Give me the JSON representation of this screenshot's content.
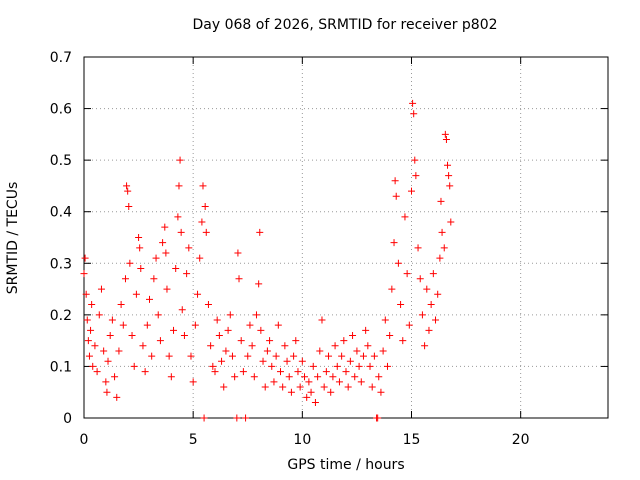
{
  "chart_data": {
    "type": "scatter",
    "title": "Day 068 of 2026, SRMTID for receiver p802",
    "xlabel": "GPS time / hours",
    "ylabel": "SRMTID / TECUs",
    "xlim": [
      0,
      24
    ],
    "ylim": [
      0,
      0.7
    ],
    "xticks": [
      0,
      5,
      10,
      15,
      20
    ],
    "yticks": [
      0,
      0.1,
      0.2,
      0.3,
      0.4,
      0.5,
      0.6,
      0.7
    ],
    "grid": true,
    "series": [
      {
        "name": "p802",
        "color": "#ff0000",
        "marker": "plus",
        "points": [
          [
            0.0,
            0.28
          ],
          [
            0.05,
            0.31
          ],
          [
            0.1,
            0.24
          ],
          [
            0.15,
            0.19
          ],
          [
            0.2,
            0.15
          ],
          [
            0.25,
            0.12
          ],
          [
            0.3,
            0.17
          ],
          [
            0.35,
            0.22
          ],
          [
            0.4,
            0.1
          ],
          [
            0.5,
            0.14
          ],
          [
            0.6,
            0.09
          ],
          [
            0.7,
            0.2
          ],
          [
            0.8,
            0.25
          ],
          [
            0.9,
            0.13
          ],
          [
            1.0,
            0.07
          ],
          [
            1.05,
            0.05
          ],
          [
            1.1,
            0.11
          ],
          [
            1.2,
            0.16
          ],
          [
            1.3,
            0.19
          ],
          [
            1.4,
            0.08
          ],
          [
            1.5,
            0.04
          ],
          [
            1.6,
            0.13
          ],
          [
            1.7,
            0.22
          ],
          [
            1.8,
            0.18
          ],
          [
            1.9,
            0.27
          ],
          [
            1.95,
            0.45
          ],
          [
            2.0,
            0.44
          ],
          [
            2.05,
            0.41
          ],
          [
            2.1,
            0.3
          ],
          [
            2.2,
            0.16
          ],
          [
            2.3,
            0.1
          ],
          [
            2.4,
            0.24
          ],
          [
            2.5,
            0.35
          ],
          [
            2.55,
            0.33
          ],
          [
            2.6,
            0.29
          ],
          [
            2.7,
            0.14
          ],
          [
            2.8,
            0.09
          ],
          [
            2.9,
            0.18
          ],
          [
            3.0,
            0.23
          ],
          [
            3.1,
            0.12
          ],
          [
            3.2,
            0.27
          ],
          [
            3.3,
            0.31
          ],
          [
            3.4,
            0.2
          ],
          [
            3.5,
            0.15
          ],
          [
            3.6,
            0.34
          ],
          [
            3.7,
            0.37
          ],
          [
            3.75,
            0.32
          ],
          [
            3.8,
            0.25
          ],
          [
            3.9,
            0.12
          ],
          [
            4.0,
            0.08
          ],
          [
            4.1,
            0.17
          ],
          [
            4.2,
            0.29
          ],
          [
            4.3,
            0.39
          ],
          [
            4.35,
            0.45
          ],
          [
            4.4,
            0.5
          ],
          [
            4.45,
            0.36
          ],
          [
            4.5,
            0.21
          ],
          [
            4.6,
            0.16
          ],
          [
            4.7,
            0.28
          ],
          [
            4.8,
            0.33
          ],
          [
            4.9,
            0.12
          ],
          [
            5.0,
            0.07
          ],
          [
            5.1,
            0.18
          ],
          [
            5.2,
            0.24
          ],
          [
            5.3,
            0.31
          ],
          [
            5.4,
            0.38
          ],
          [
            5.45,
            0.45
          ],
          [
            5.5,
            0.0
          ],
          [
            5.55,
            0.41
          ],
          [
            5.6,
            0.36
          ],
          [
            5.7,
            0.22
          ],
          [
            5.8,
            0.14
          ],
          [
            5.9,
            0.1
          ],
          [
            6.0,
            0.09
          ],
          [
            6.1,
            0.19
          ],
          [
            6.2,
            0.16
          ],
          [
            6.3,
            0.11
          ],
          [
            6.4,
            0.06
          ],
          [
            6.5,
            0.13
          ],
          [
            6.6,
            0.17
          ],
          [
            6.7,
            0.2
          ],
          [
            6.8,
            0.12
          ],
          [
            6.9,
            0.08
          ],
          [
            7.0,
            0.0
          ],
          [
            7.05,
            0.32
          ],
          [
            7.1,
            0.27
          ],
          [
            7.2,
            0.15
          ],
          [
            7.3,
            0.09
          ],
          [
            7.4,
            0.0
          ],
          [
            7.5,
            0.12
          ],
          [
            7.6,
            0.18
          ],
          [
            7.7,
            0.14
          ],
          [
            7.8,
            0.08
          ],
          [
            7.9,
            0.2
          ],
          [
            8.0,
            0.26
          ],
          [
            8.05,
            0.36
          ],
          [
            8.1,
            0.17
          ],
          [
            8.2,
            0.11
          ],
          [
            8.3,
            0.06
          ],
          [
            8.4,
            0.13
          ],
          [
            8.5,
            0.15
          ],
          [
            8.6,
            0.1
          ],
          [
            8.7,
            0.07
          ],
          [
            8.8,
            0.12
          ],
          [
            8.9,
            0.18
          ],
          [
            9.0,
            0.09
          ],
          [
            9.1,
            0.06
          ],
          [
            9.2,
            0.14
          ],
          [
            9.3,
            0.11
          ],
          [
            9.4,
            0.08
          ],
          [
            9.5,
            0.05
          ],
          [
            9.6,
            0.12
          ],
          [
            9.7,
            0.15
          ],
          [
            9.8,
            0.09
          ],
          [
            9.9,
            0.06
          ],
          [
            10.0,
            0.11
          ],
          [
            10.1,
            0.08
          ],
          [
            10.2,
            0.04
          ],
          [
            10.3,
            0.07
          ],
          [
            10.4,
            0.05
          ],
          [
            10.5,
            0.1
          ],
          [
            10.6,
            0.03
          ],
          [
            10.7,
            0.08
          ],
          [
            10.8,
            0.13
          ],
          [
            10.9,
            0.19
          ],
          [
            11.0,
            0.06
          ],
          [
            11.1,
            0.09
          ],
          [
            11.2,
            0.12
          ],
          [
            11.3,
            0.05
          ],
          [
            11.4,
            0.08
          ],
          [
            11.5,
            0.14
          ],
          [
            11.6,
            0.1
          ],
          [
            11.7,
            0.07
          ],
          [
            11.8,
            0.12
          ],
          [
            11.9,
            0.15
          ],
          [
            12.0,
            0.09
          ],
          [
            12.1,
            0.06
          ],
          [
            12.2,
            0.11
          ],
          [
            12.3,
            0.16
          ],
          [
            12.4,
            0.08
          ],
          [
            12.5,
            0.13
          ],
          [
            12.6,
            0.1
          ],
          [
            12.7,
            0.07
          ],
          [
            12.8,
            0.12
          ],
          [
            12.9,
            0.17
          ],
          [
            13.0,
            0.14
          ],
          [
            13.1,
            0.1
          ],
          [
            13.2,
            0.06
          ],
          [
            13.3,
            0.12
          ],
          [
            13.4,
            0.0
          ],
          [
            13.45,
            0.0
          ],
          [
            13.5,
            0.08
          ],
          [
            13.6,
            0.05
          ],
          [
            13.7,
            0.13
          ],
          [
            13.8,
            0.19
          ],
          [
            13.9,
            0.1
          ],
          [
            14.0,
            0.16
          ],
          [
            14.1,
            0.25
          ],
          [
            14.2,
            0.34
          ],
          [
            14.25,
            0.46
          ],
          [
            14.3,
            0.43
          ],
          [
            14.4,
            0.3
          ],
          [
            14.5,
            0.22
          ],
          [
            14.6,
            0.15
          ],
          [
            14.7,
            0.39
          ],
          [
            14.8,
            0.28
          ],
          [
            14.9,
            0.18
          ],
          [
            15.0,
            0.44
          ],
          [
            15.05,
            0.61
          ],
          [
            15.1,
            0.59
          ],
          [
            15.15,
            0.5
          ],
          [
            15.2,
            0.47
          ],
          [
            15.3,
            0.33
          ],
          [
            15.4,
            0.27
          ],
          [
            15.5,
            0.2
          ],
          [
            15.6,
            0.14
          ],
          [
            15.7,
            0.25
          ],
          [
            15.8,
            0.17
          ],
          [
            15.9,
            0.22
          ],
          [
            16.0,
            0.28
          ],
          [
            16.1,
            0.19
          ],
          [
            16.2,
            0.24
          ],
          [
            16.3,
            0.31
          ],
          [
            16.35,
            0.42
          ],
          [
            16.4,
            0.36
          ],
          [
            16.5,
            0.33
          ],
          [
            16.55,
            0.55
          ],
          [
            16.6,
            0.54
          ],
          [
            16.65,
            0.49
          ],
          [
            16.7,
            0.47
          ],
          [
            16.75,
            0.45
          ],
          [
            16.8,
            0.38
          ]
        ]
      }
    ]
  }
}
